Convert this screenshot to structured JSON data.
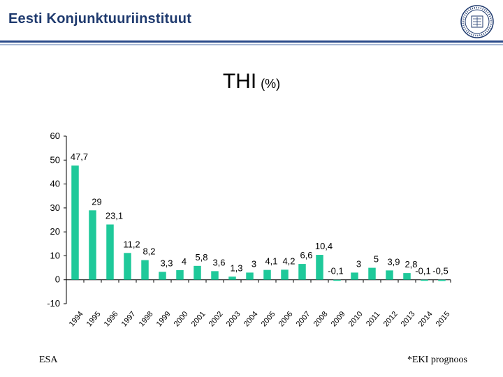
{
  "header": {
    "org_name": "Eesti Konjunktuuriinstituut",
    "seal_icon": "university-seal-icon"
  },
  "footer": {
    "source": "ESA",
    "note": "*EKI prognoos"
  },
  "colors": {
    "bar": "#1fc99a",
    "header_text": "#1f3a6e",
    "rule_dark": "#2a4a8a",
    "rule_light": "#a9b9d6"
  },
  "chart_data": {
    "type": "bar",
    "title": "THI",
    "title_unit": "(%)",
    "xlabel": "",
    "ylabel": "",
    "ylim": [
      -10,
      60
    ],
    "yticks": [
      -10,
      0,
      10,
      20,
      30,
      40,
      50,
      60
    ],
    "grid": false,
    "categories": [
      "1994",
      "1995",
      "1996",
      "1997",
      "1998",
      "1999",
      "2000",
      "2001",
      "2002",
      "2003",
      "2004",
      "2005",
      "2006",
      "2007",
      "2008",
      "2009",
      "2010",
      "2011",
      "2012",
      "2013",
      "2014",
      "2015"
    ],
    "values": [
      47.7,
      29,
      23.1,
      11.2,
      8.2,
      3.3,
      4,
      5.8,
      3.6,
      1.3,
      3,
      4.1,
      4.2,
      6.6,
      10.4,
      -0.1,
      3,
      5,
      3.9,
      2.8,
      -0.1,
      -0.5
    ],
    "data_labels": [
      "47,7",
      "29",
      "23,1",
      "11,2",
      "8,2",
      "3,3",
      "4",
      "5,8",
      "3,6",
      "1,3",
      "3",
      "4,1",
      "4,2",
      "6,6",
      "10,4",
      "-0,1",
      "3",
      "5",
      "3,9",
      "2,8",
      "-0,1",
      "-0,5"
    ]
  }
}
